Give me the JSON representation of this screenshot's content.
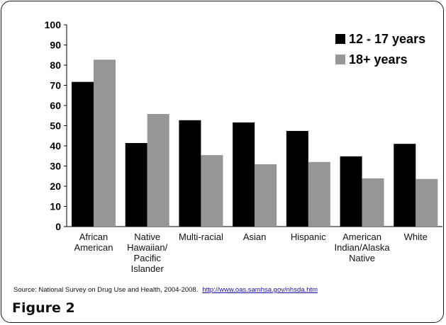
{
  "chart_data": {
    "type": "bar",
    "categories": [
      "African\nAmerican",
      "Native\nHawaiian/\nPacific\nIslander",
      "Multi-racial",
      "Asian",
      "Hispanic",
      "American\nIndian/Alaska\nNative",
      "White"
    ],
    "series": [
      {
        "name": "12 - 17 years",
        "color": "#000000",
        "values": [
          71.7,
          41.4,
          52.7,
          51.6,
          47.4,
          34.8,
          41.0
        ]
      },
      {
        "name": "18+ years",
        "color": "#969696",
        "values": [
          82.7,
          55.8,
          35.4,
          30.9,
          32.0,
          23.9,
          23.6
        ]
      }
    ],
    "ylim": [
      0,
      100
    ],
    "yticks": [
      0,
      10,
      20,
      30,
      40,
      50,
      60,
      70,
      80,
      90,
      100
    ],
    "legend_position": "top-right",
    "grid": false
  },
  "source_text": "Source: National Survey on Drug Use and Health, 2004-2008.",
  "source_link": "http://www.oas.samhsa.gov/nhsda.htm",
  "figure_label": "Figure 2"
}
